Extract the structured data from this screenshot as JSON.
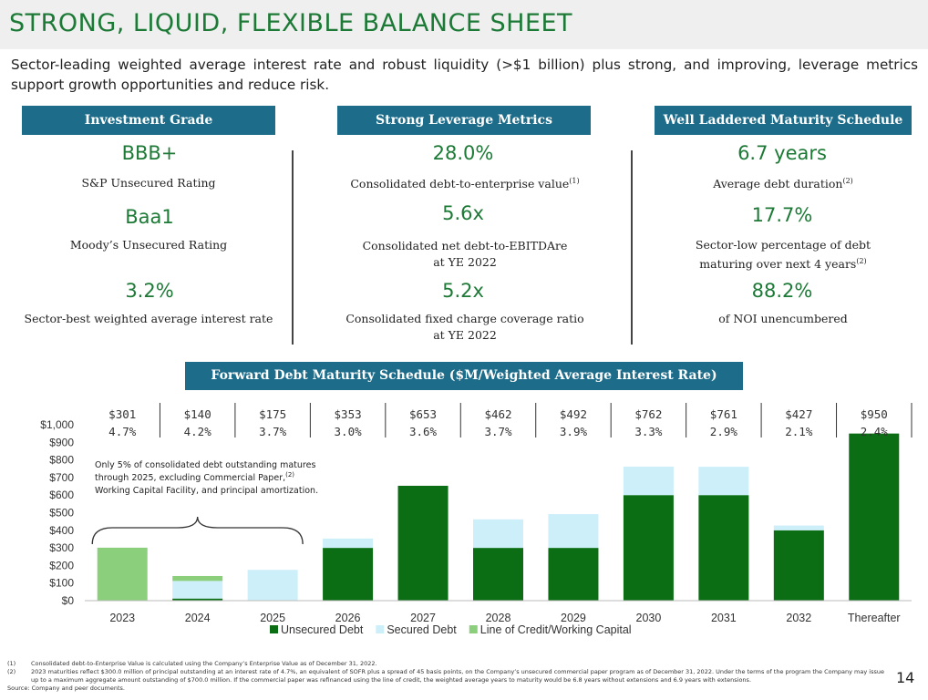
{
  "title": "STRONG, LIQUID, FLEXIBLE BALANCE SHEET",
  "subtitle": "Sector-leading weighted average interest rate and robust liquidity (>$1 billion) plus strong, and improving, leverage metrics support growth opportunities and reduce risk.",
  "columns": [
    {
      "header": "Investment Grade",
      "metrics": [
        {
          "value": "BBB+",
          "label": "S&P Unsecured Rating",
          "label2": "",
          "note": ""
        },
        {
          "value": "Baa1",
          "label": "Moody’s Unsecured Rating",
          "label2": "",
          "note": ""
        },
        {
          "value": "3.2%",
          "label": "Sector-best weighted average interest rate",
          "label2": "",
          "note": ""
        }
      ]
    },
    {
      "header": "Strong Leverage Metrics",
      "metrics": [
        {
          "value": "28.0%",
          "label": "Consolidated debt-to-enterprise value",
          "label2": "",
          "note": "(1)"
        },
        {
          "value": "5.6x",
          "label": "Consolidated net debt-to-EBITDAre",
          "label2": "at YE 2022",
          "note": ""
        },
        {
          "value": "5.2x",
          "label": "Consolidated fixed charge coverage ratio",
          "label2": "at YE 2022",
          "note": ""
        }
      ]
    },
    {
      "header": "Well Laddered Maturity Schedule",
      "metrics": [
        {
          "value": "6.7 years",
          "label": "Average debt duration",
          "label2": "",
          "note": "(2)"
        },
        {
          "value": "17.7%",
          "label": "Sector-low percentage of debt",
          "label2": "maturing over next 4 years",
          "note": "(2)"
        },
        {
          "value": "88.2%",
          "label": "of NOI unencumbered",
          "label2": "",
          "note": ""
        }
      ]
    }
  ],
  "chart_header": "Forward Debt Maturity Schedule ($M/Weighted Average Interest Rate)",
  "chart_data": {
    "type": "bar",
    "stacked": true,
    "title": "Forward Debt Maturity Schedule ($M/Weighted Average Interest Rate)",
    "categories": [
      "2023",
      "2024",
      "2025",
      "2026",
      "2027",
      "2028",
      "2029",
      "2030",
      "2031",
      "2032",
      "Thereafter"
    ],
    "series": [
      {
        "name": "Unsecured Debt",
        "color": "#0b6e14",
        "values": [
          0,
          12,
          0,
          300,
          653,
          300,
          300,
          600,
          600,
          400,
          950
        ]
      },
      {
        "name": "Secured Debt",
        "color": "#cdeffa",
        "values": [
          0,
          100,
          175,
          53,
          0,
          162,
          192,
          162,
          161,
          27,
          0
        ]
      },
      {
        "name": "Line of Credit/Working Capital",
        "color": "#8bcf7c",
        "values": [
          301,
          28,
          0,
          0,
          0,
          0,
          0,
          0,
          0,
          0,
          0
        ]
      }
    ],
    "totals": [
      "$301",
      "$140",
      "$175",
      "$353",
      "$653",
      "$462",
      "$492",
      "$762",
      "$761",
      "$427",
      "$950"
    ],
    "rates": [
      "4.7%",
      "4.2%",
      "3.7%",
      "3.0%",
      "3.6%",
      "3.7%",
      "3.9%",
      "3.3%",
      "2.9%",
      "2.1%",
      "2.4%"
    ],
    "ylim": [
      0,
      1000
    ],
    "yticks": [
      0,
      100,
      200,
      300,
      400,
      500,
      600,
      700,
      800,
      900,
      1000
    ],
    "ytick_labels": [
      "$0",
      "$100",
      "$200",
      "$300",
      "$400",
      "$500",
      "$600",
      "$700",
      "$800",
      "$900",
      "$1,000"
    ],
    "legend_position": "bottom",
    "annotation": {
      "lines": [
        "Only 5% of consolidated debt outstanding matures",
        "through 2025, excluding Commercial Paper,",
        "Working Capital Facility, and principal amortization."
      ],
      "note": "(2)"
    }
  },
  "footnotes": [
    {
      "num": "(1)",
      "text": "Consolidated debt-to-Enterprise Value is calculated using the Company’s Enterprise Value as of December 31, 2022."
    },
    {
      "num": "(2)",
      "text": "2023 maturities reflect $300.0 million of principal outstanding at an interest rate of 4.7%, an equivalent of SOFR plus a spread of 45 basis points, on the Company’s unsecured commercial paper program as of December 31, 2022. Under the terms of the program the Company may issue up to a maximum aggregate amount outstanding of $700.0 million. If the commercial paper was refinanced using the line of credit, the weighted average years to maturity would be 6.8 years without extensions and 6.9 years with extensions."
    }
  ],
  "source": "Source: Company and peer documents.",
  "page_number": "14"
}
